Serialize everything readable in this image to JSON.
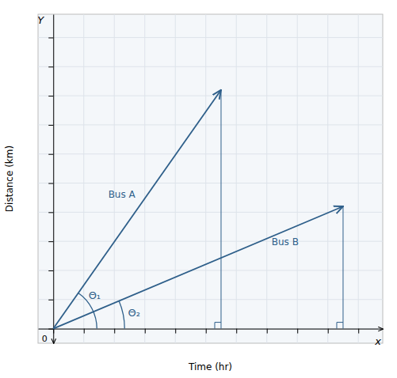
{
  "chart_data": {
    "type": "line",
    "xlabel": "Time (hr)",
    "ylabel": "Distance (km)",
    "xlim": [
      -0.5,
      10.8
    ],
    "ylim": [
      -0.5,
      10.8
    ],
    "xticks": [
      0,
      1,
      2,
      3,
      4,
      5,
      6,
      7,
      8,
      9,
      10
    ],
    "yticks": [
      0,
      1,
      2,
      3,
      4,
      5,
      6,
      7,
      8,
      9,
      10
    ],
    "grid": true,
    "tick_labels": false,
    "series": [
      {
        "name": "Bus A",
        "color": "#2e5f8a",
        "x": [
          0,
          5.5
        ],
        "values": [
          0,
          8.2
        ]
      },
      {
        "name": "Bus B",
        "color": "#2e5f8a",
        "x": [
          0,
          9.5
        ],
        "values": [
          0,
          4.2
        ]
      }
    ],
    "annotations": [
      "Θ₁",
      "Θ₂",
      "x",
      "Y",
      "0"
    ]
  }
}
